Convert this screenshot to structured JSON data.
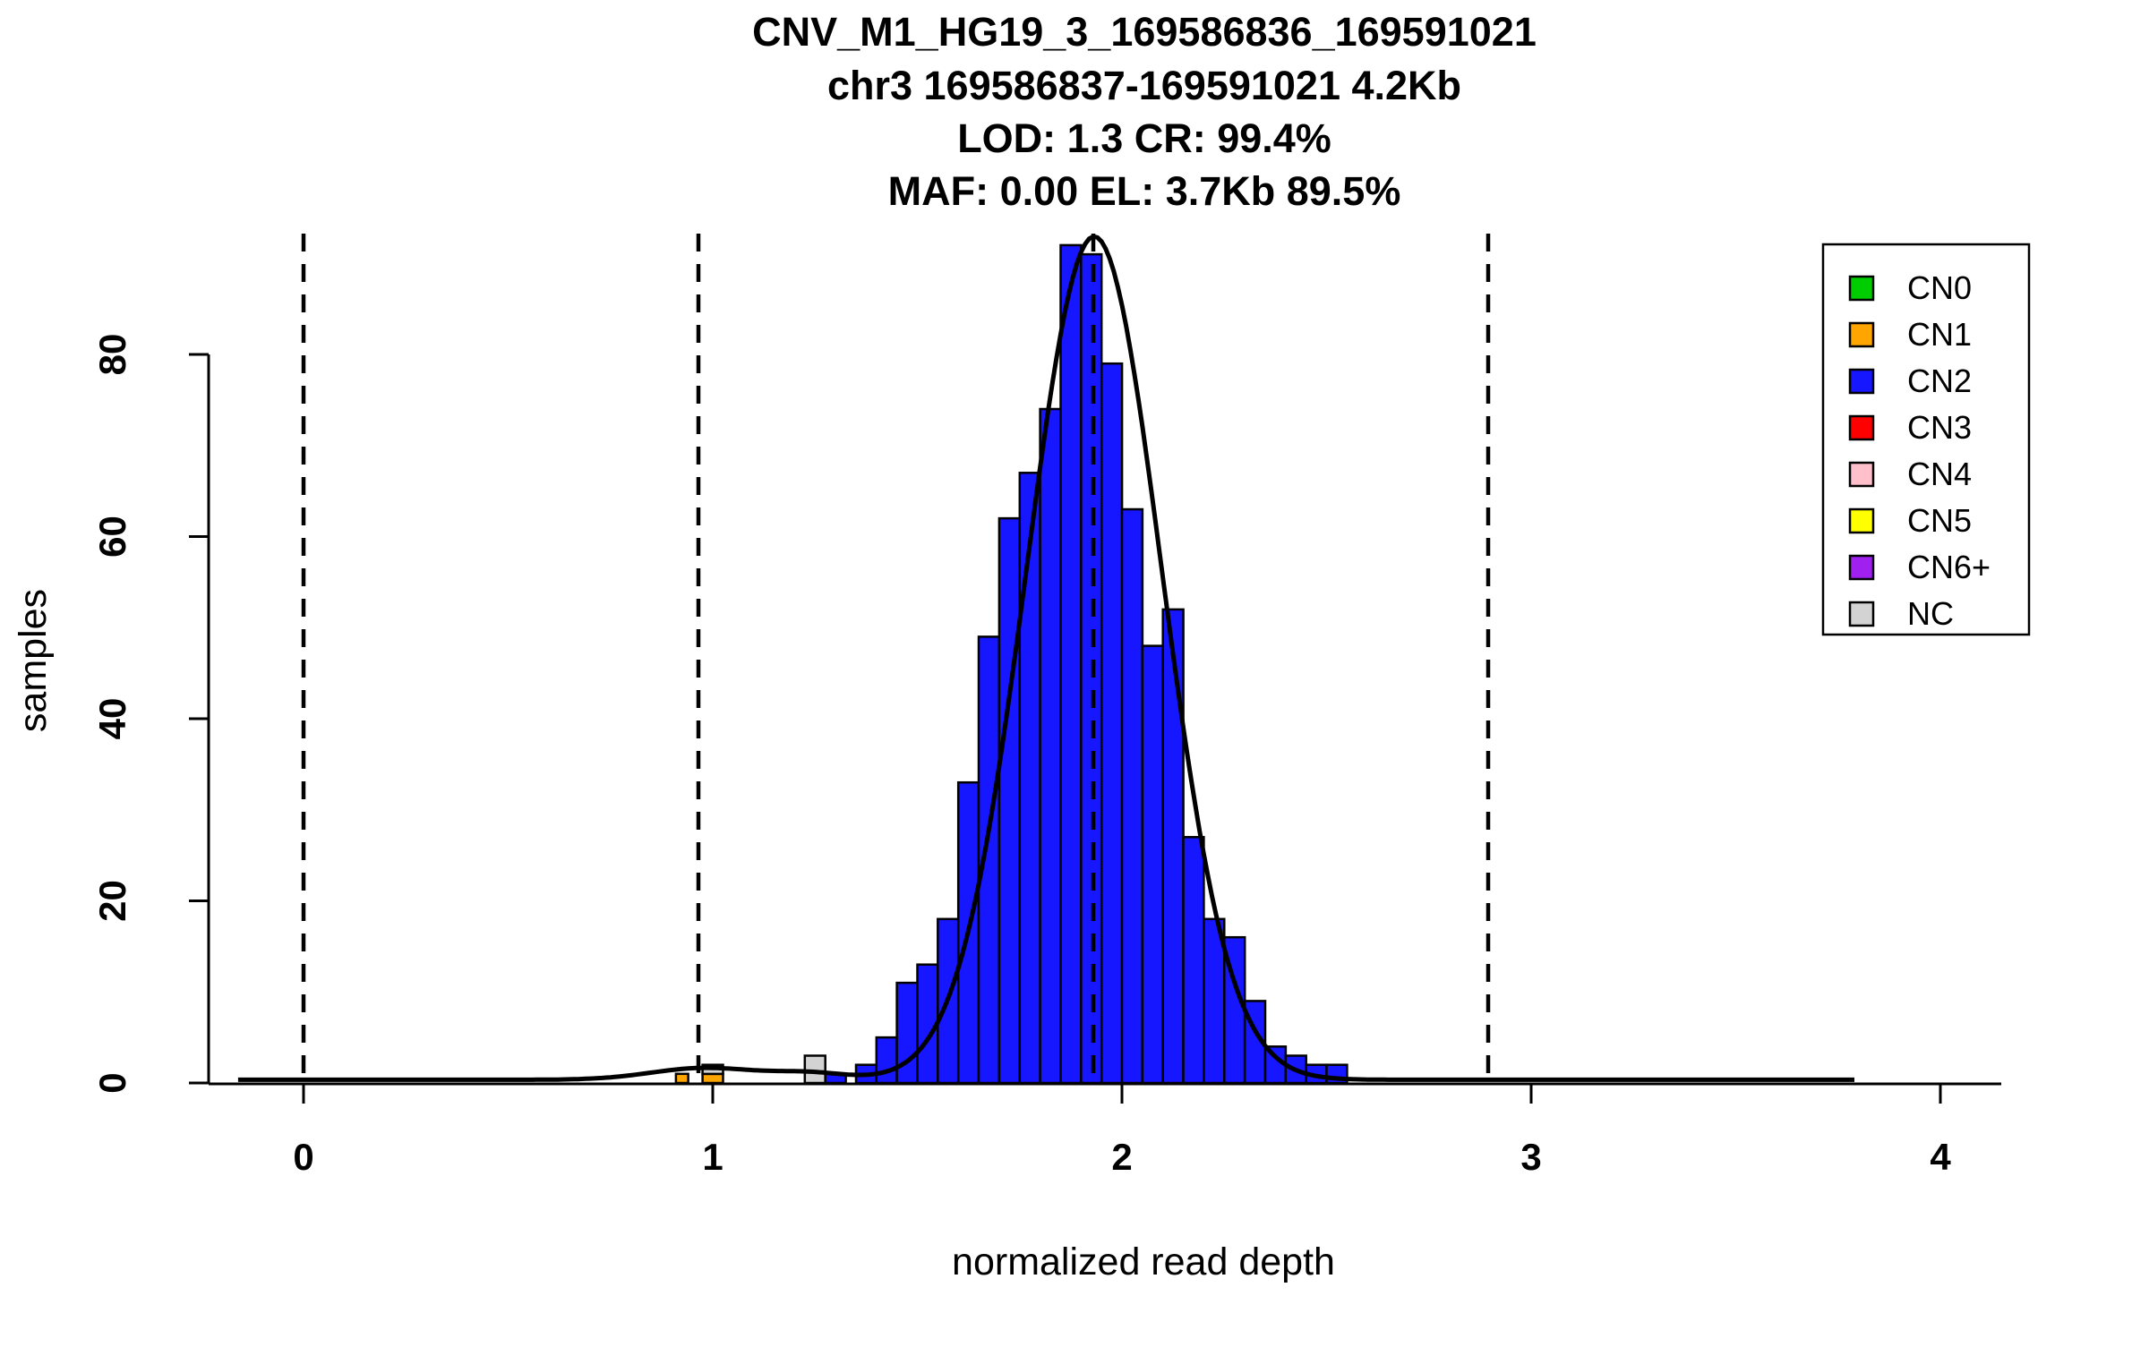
{
  "chart_data": {
    "type": "bar",
    "subtype": "histogram",
    "title_lines": [
      "CNV_M1_HG19_3_169586836_169591021",
      "chr3 169586837-169591021 4.2Kb",
      "LOD: 1.3 CR: 99.4%",
      "MAF: 0.00 EL: 3.7Kb 89.5%"
    ],
    "xlabel": "normalized read depth",
    "ylabel": "samples",
    "xlim": [
      0,
      4
    ],
    "ylim": [
      0,
      92
    ],
    "x_ticks": [
      0,
      1,
      2,
      3,
      4
    ],
    "y_ticks": [
      0,
      20,
      40,
      60,
      80
    ],
    "grid": false,
    "bin_width": 0.05,
    "bars": [
      {
        "x0": 0.91,
        "w": 0.03,
        "n": 1,
        "cn": "CN1"
      },
      {
        "x0": 0.975,
        "w": 0.05,
        "n": 1,
        "cn": "CN1"
      },
      {
        "x0": 0.975,
        "w": 0.05,
        "n": 1,
        "cn": "NC"
      },
      {
        "x0": 1.225,
        "w": 0.05,
        "n": 3,
        "cn": "NC"
      },
      {
        "x0": 1.275,
        "w": 0.05,
        "n": 1,
        "cn": "CN2"
      },
      {
        "x0": 1.35,
        "w": 0.05,
        "n": 2,
        "cn": "CN2"
      },
      {
        "x0": 1.4,
        "w": 0.05,
        "n": 5,
        "cn": "CN2"
      },
      {
        "x0": 1.45,
        "w": 0.05,
        "n": 11,
        "cn": "CN2"
      },
      {
        "x0": 1.5,
        "w": 0.05,
        "n": 13,
        "cn": "CN2"
      },
      {
        "x0": 1.55,
        "w": 0.05,
        "n": 18,
        "cn": "CN2"
      },
      {
        "x0": 1.6,
        "w": 0.05,
        "n": 33,
        "cn": "CN2"
      },
      {
        "x0": 1.65,
        "w": 0.05,
        "n": 49,
        "cn": "CN2"
      },
      {
        "x0": 1.7,
        "w": 0.05,
        "n": 62,
        "cn": "CN2"
      },
      {
        "x0": 1.75,
        "w": 0.05,
        "n": 67,
        "cn": "CN2"
      },
      {
        "x0": 1.8,
        "w": 0.05,
        "n": 74,
        "cn": "CN2"
      },
      {
        "x0": 1.85,
        "w": 0.05,
        "n": 92,
        "cn": "CN2"
      },
      {
        "x0": 1.9,
        "w": 0.05,
        "n": 91,
        "cn": "CN2"
      },
      {
        "x0": 1.95,
        "w": 0.05,
        "n": 79,
        "cn": "CN2"
      },
      {
        "x0": 2.0,
        "w": 0.05,
        "n": 63,
        "cn": "CN2"
      },
      {
        "x0": 2.05,
        "w": 0.05,
        "n": 48,
        "cn": "CN2"
      },
      {
        "x0": 2.1,
        "w": 0.05,
        "n": 52,
        "cn": "CN2"
      },
      {
        "x0": 2.15,
        "w": 0.05,
        "n": 27,
        "cn": "CN2"
      },
      {
        "x0": 2.2,
        "w": 0.05,
        "n": 18,
        "cn": "CN2"
      },
      {
        "x0": 2.25,
        "w": 0.05,
        "n": 16,
        "cn": "CN2"
      },
      {
        "x0": 2.3,
        "w": 0.05,
        "n": 9,
        "cn": "CN2"
      },
      {
        "x0": 2.35,
        "w": 0.05,
        "n": 4,
        "cn": "CN2"
      },
      {
        "x0": 2.4,
        "w": 0.05,
        "n": 3,
        "cn": "CN2"
      },
      {
        "x0": 2.45,
        "w": 0.05,
        "n": 2,
        "cn": "CN2"
      },
      {
        "x0": 2.5,
        "w": 0.05,
        "n": 2,
        "cn": "CN2"
      }
    ],
    "fit_curve": {
      "model": "gaussian_mixture",
      "baseline": 0.35,
      "x_range": [
        -0.16,
        3.79
      ],
      "components": [
        {
          "mean": 1.932,
          "sd": 0.165,
          "amplitude": 92.6
        },
        {
          "mean": 0.98,
          "sd": 0.13,
          "amplitude": 1.3
        },
        {
          "mean": 1.24,
          "sd": 0.09,
          "amplitude": 0.7
        }
      ]
    },
    "cluster_lines_x": [
      0.0,
      0.965,
      1.93,
      2.895
    ],
    "legend": {
      "position": "top-right",
      "entries": [
        "CN0",
        "CN1",
        "CN2",
        "CN3",
        "CN4",
        "CN5",
        "CN6+",
        "NC"
      ]
    },
    "colors": {
      "CN0": "#00cd00",
      "CN1": "#ffa500",
      "CN2": "#1616ff",
      "CN3": "#ff0000",
      "CN4": "#ffc0cb",
      "CN5": "#ffff00",
      "CN6+": "#a020f0",
      "NC": "#d3d3d3"
    },
    "axis_color": "#000000",
    "curve_color": "#000000"
  }
}
